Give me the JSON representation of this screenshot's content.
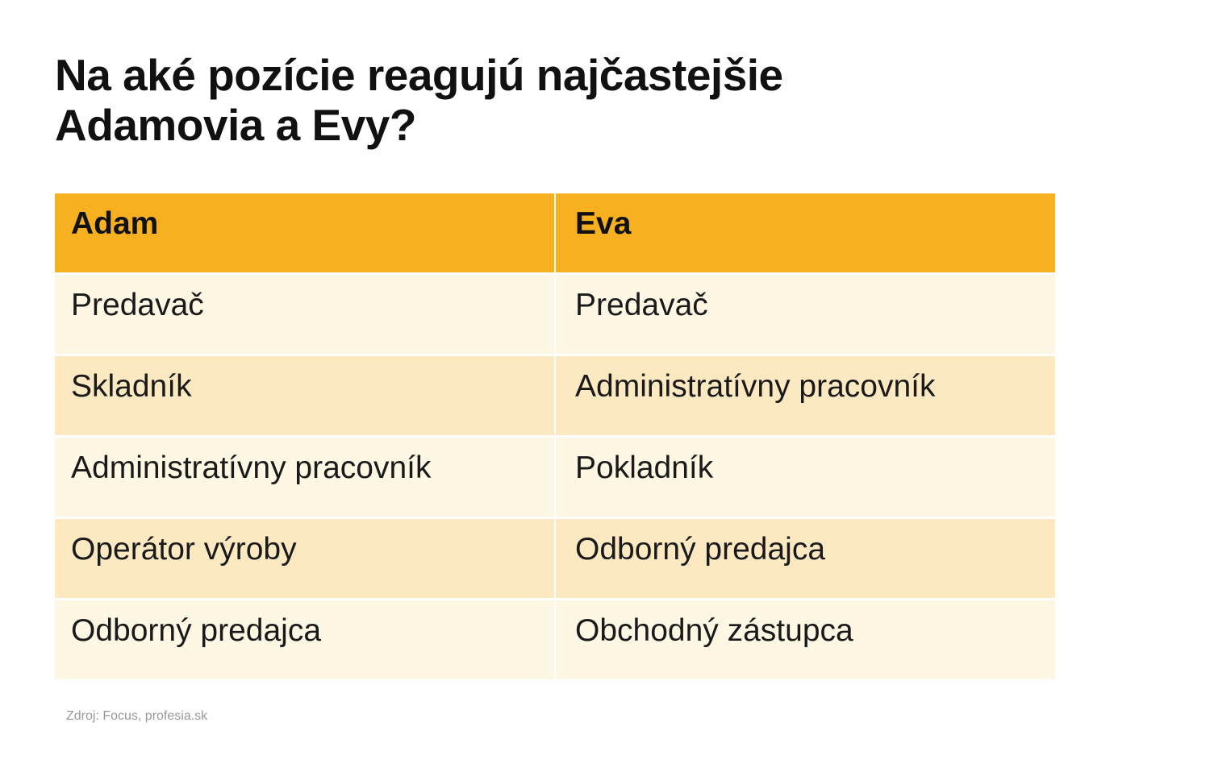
{
  "title": {
    "line1": "Na aké pozície reagujú najčastejšie",
    "line2": "Adamovia a Evy?"
  },
  "table": {
    "headers": [
      "Adam",
      "Eva"
    ],
    "rows": [
      [
        "Predavač",
        "Predavač"
      ],
      [
        "Skladník",
        "Administratívny pracovník"
      ],
      [
        "Administratívny pracovník",
        "Pokladník"
      ],
      [
        "Operátor výroby",
        "Odborný predajca"
      ],
      [
        "Odborný predajca",
        "Obchodný zástupca"
      ]
    ]
  },
  "source": "Zdroj: Focus, profesia.sk",
  "colors": {
    "header": "#f7b01f",
    "row_light": "#fef7e4",
    "row_dark": "#fce9c2"
  }
}
